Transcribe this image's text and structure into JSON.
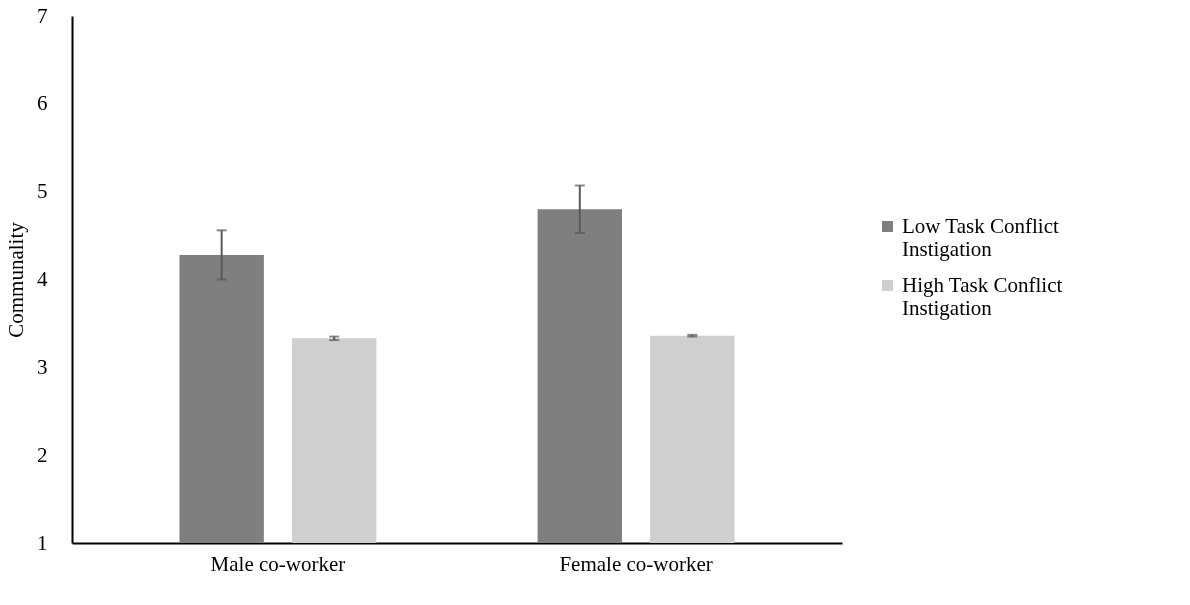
{
  "chart_data": {
    "type": "bar",
    "ylabel": "Communality",
    "categories": [
      "Male co-worker",
      "Female co-worker"
    ],
    "series": [
      {
        "name": "Low Task Conflict Instigation",
        "color": "#7f7f7f",
        "values": [
          4.28,
          4.8
        ],
        "errors": [
          0.28,
          0.27
        ]
      },
      {
        "name": "High Task Conflict Instigation",
        "color": "#d0cfd0",
        "values": [
          3.33,
          3.36
        ],
        "errors": [
          0.02,
          0.01
        ]
      }
    ],
    "ylim": [
      1,
      7
    ],
    "yticks": [
      1,
      2,
      3,
      4,
      5,
      6,
      7
    ],
    "grid": false,
    "legend": "right"
  }
}
